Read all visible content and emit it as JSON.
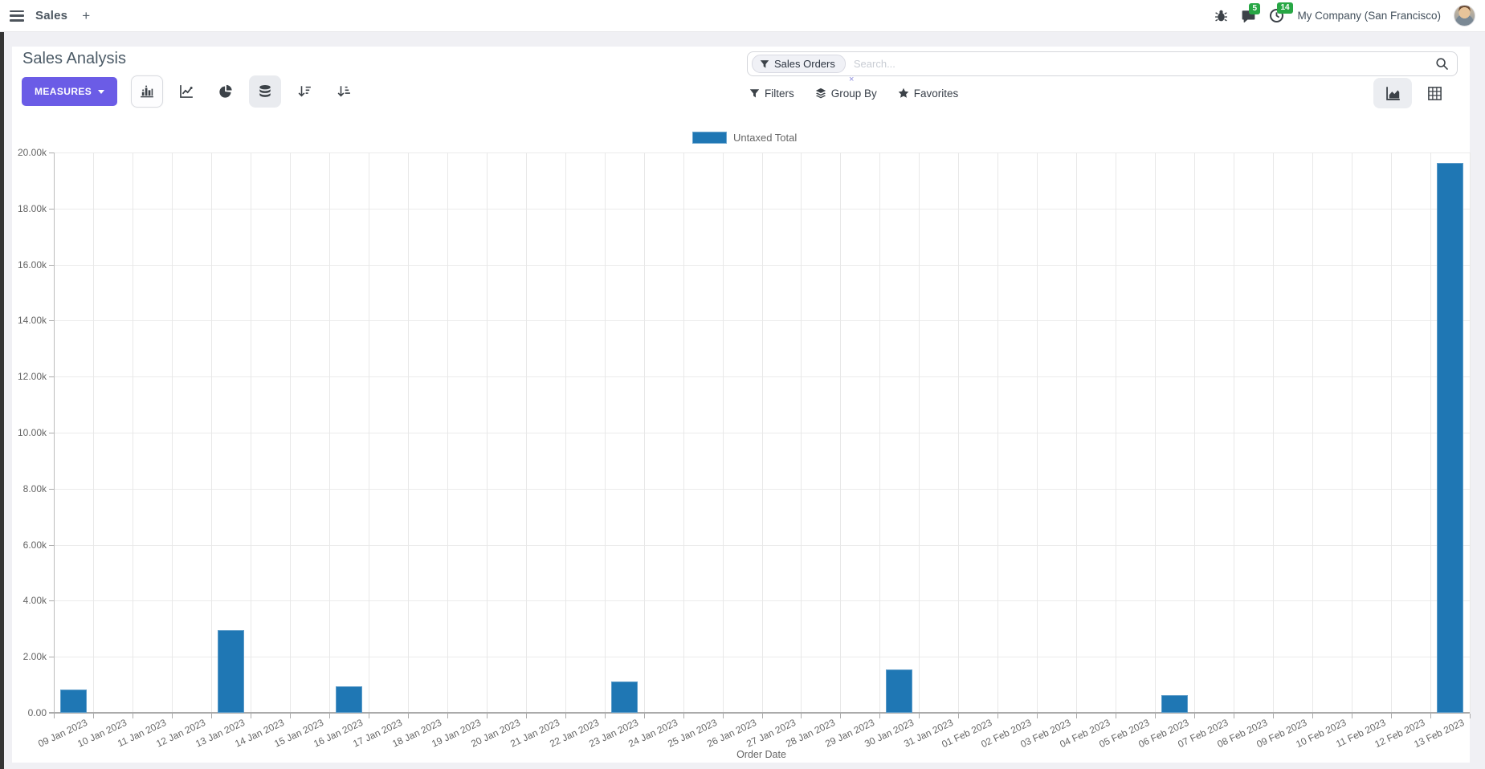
{
  "navbar": {
    "app_menu_label": "Sales",
    "plus_label": "+",
    "message_badge": "5",
    "activity_badge": "14",
    "company": "My Company (San Francisco)"
  },
  "control_panel": {
    "title": "Sales Analysis",
    "measures_label": "MEASURES",
    "search": {
      "facet_label": "Sales Orders",
      "facet_remove": "×",
      "placeholder": "Search..."
    },
    "filters_label": "Filters",
    "group_by_label": "Group By",
    "favorites_label": "Favorites"
  },
  "colors": {
    "primary_button": "#6b5ce6",
    "badge_green": "#28a745",
    "bar_blue": "#1f77b4"
  },
  "chart_data": {
    "type": "bar",
    "title": "",
    "legend": "Untaxed Total",
    "legend_position": "top-center",
    "xlabel": "Order Date",
    "ylabel": "",
    "ylim": [
      0,
      20000
    ],
    "grid": true,
    "bar_color": "#1f77b4",
    "y_ticks": [
      "0.00",
      "2.00k",
      "4.00k",
      "6.00k",
      "8.00k",
      "10.00k",
      "12.00k",
      "14.00k",
      "16.00k",
      "18.00k",
      "20.00k"
    ],
    "categories": [
      "09 Jan 2023",
      "10 Jan 2023",
      "11 Jan 2023",
      "12 Jan 2023",
      "13 Jan 2023",
      "14 Jan 2023",
      "15 Jan 2023",
      "16 Jan 2023",
      "17 Jan 2023",
      "18 Jan 2023",
      "19 Jan 2023",
      "20 Jan 2023",
      "21 Jan 2023",
      "22 Jan 2023",
      "23 Jan 2023",
      "24 Jan 2023",
      "25 Jan 2023",
      "26 Jan 2023",
      "27 Jan 2023",
      "28 Jan 2023",
      "29 Jan 2023",
      "30 Jan 2023",
      "31 Jan 2023",
      "01 Feb 2023",
      "02 Feb 2023",
      "03 Feb 2023",
      "04 Feb 2023",
      "05 Feb 2023",
      "06 Feb 2023",
      "07 Feb 2023",
      "08 Feb 2023",
      "09 Feb 2023",
      "10 Feb 2023",
      "11 Feb 2023",
      "12 Feb 2023",
      "13 Feb 2023"
    ],
    "values": [
      830,
      0,
      0,
      0,
      2940,
      0,
      0,
      940,
      0,
      0,
      0,
      0,
      0,
      0,
      1110,
      0,
      0,
      0,
      0,
      0,
      0,
      1540,
      0,
      0,
      0,
      0,
      0,
      0,
      630,
      0,
      0,
      0,
      0,
      0,
      0,
      19630
    ]
  }
}
